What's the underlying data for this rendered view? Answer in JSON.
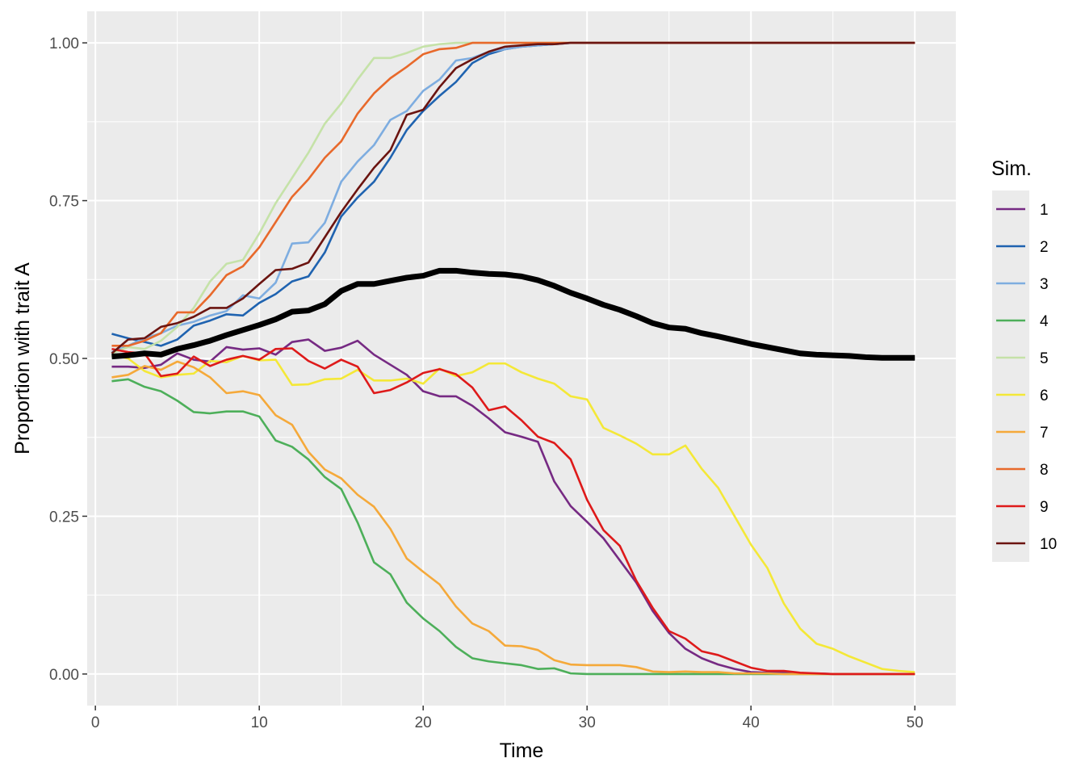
{
  "chart_data": {
    "type": "line",
    "title": "",
    "xlabel": "Time",
    "ylabel": "Proportion with trait A",
    "xlim": [
      -0.5,
      52.5
    ],
    "ylim": [
      -0.05,
      1.05
    ],
    "xticks": [
      0,
      10,
      20,
      30,
      40,
      50
    ],
    "yticks": [
      0,
      0.25,
      0.5,
      0.75,
      1
    ],
    "xtick_labels": [
      "0",
      "10",
      "20",
      "30",
      "40",
      "50"
    ],
    "ytick_labels": [
      "0.00",
      "0.25",
      "0.50",
      "0.75",
      "1.00"
    ],
    "grid": true,
    "panel_background": "#EBEBEB",
    "grid_color": "#FFFFFF",
    "legend": {
      "title": "Sim.",
      "position": "right"
    },
    "x": [
      1,
      2,
      3,
      4,
      5,
      6,
      7,
      8,
      9,
      10,
      11,
      12,
      13,
      14,
      15,
      16,
      17,
      18,
      19,
      20,
      21,
      22,
      23,
      24,
      25,
      26,
      27,
      28,
      29,
      30,
      31,
      32,
      33,
      34,
      35,
      36,
      37,
      38,
      39,
      40,
      41,
      42,
      43,
      44,
      45,
      46,
      47,
      48,
      49,
      50
    ],
    "series": [
      {
        "name": "1",
        "color": "#762A83",
        "values": [
          0.487,
          0.487,
          0.485,
          0.49,
          0.508,
          0.498,
          0.495,
          0.518,
          0.514,
          0.516,
          0.506,
          0.526,
          0.53,
          0.512,
          0.517,
          0.528,
          0.506,
          0.49,
          0.474,
          0.448,
          0.44,
          0.44,
          0.425,
          0.405,
          0.383,
          0.376,
          0.368,
          0.305,
          0.266,
          0.241,
          0.215,
          0.18,
          0.145,
          0.1,
          0.065,
          0.04,
          0.025,
          0.015,
          0.008,
          0.003,
          0.002,
          0.002,
          0.001,
          0.001,
          0.0,
          0.0,
          0.0,
          0.0,
          0.0,
          0.0
        ]
      },
      {
        "name": "2",
        "color": "#1F63B0",
        "values": [
          0.539,
          0.532,
          0.526,
          0.52,
          0.53,
          0.552,
          0.56,
          0.57,
          0.568,
          0.588,
          0.602,
          0.622,
          0.63,
          0.668,
          0.725,
          0.755,
          0.78,
          0.818,
          0.862,
          0.892,
          0.916,
          0.938,
          0.968,
          0.982,
          0.99,
          0.994,
          0.996,
          0.998,
          1.0,
          1.0,
          1.0,
          1.0,
          1.0,
          1.0,
          1.0,
          1.0,
          1.0,
          1.0,
          1.0,
          1.0,
          1.0,
          1.0,
          1.0,
          1.0,
          1.0,
          1.0,
          1.0,
          1.0,
          1.0,
          1.0
        ]
      },
      {
        "name": "3",
        "color": "#7EADE0",
        "values": [
          0.51,
          0.52,
          0.532,
          0.54,
          0.552,
          0.558,
          0.568,
          0.575,
          0.6,
          0.595,
          0.62,
          0.682,
          0.684,
          0.715,
          0.78,
          0.812,
          0.838,
          0.878,
          0.892,
          0.924,
          0.942,
          0.972,
          0.976,
          0.986,
          0.99,
          0.994,
          0.996,
          0.998,
          1.0,
          1.0,
          1.0,
          1.0,
          1.0,
          1.0,
          1.0,
          1.0,
          1.0,
          1.0,
          1.0,
          1.0,
          1.0,
          1.0,
          1.0,
          1.0,
          1.0,
          1.0,
          1.0,
          1.0,
          1.0,
          1.0
        ]
      },
      {
        "name": "4",
        "color": "#4DAF5A",
        "values": [
          0.464,
          0.467,
          0.455,
          0.448,
          0.433,
          0.415,
          0.413,
          0.416,
          0.416,
          0.408,
          0.37,
          0.36,
          0.34,
          0.312,
          0.293,
          0.24,
          0.177,
          0.158,
          0.113,
          0.088,
          0.068,
          0.043,
          0.025,
          0.02,
          0.017,
          0.014,
          0.008,
          0.009,
          0.001,
          0.0,
          0.0,
          0.0,
          0.0,
          0.0,
          0.0,
          0.0,
          0.0,
          0.0,
          0.0,
          0.0,
          0.0,
          0.0,
          0.0,
          0.0,
          0.0,
          0.0,
          0.0,
          0.0,
          0.0,
          0.0
        ]
      },
      {
        "name": "5",
        "color": "#C5E2A8",
        "values": [
          0.508,
          0.518,
          0.515,
          0.528,
          0.55,
          0.58,
          0.622,
          0.65,
          0.656,
          0.698,
          0.746,
          0.786,
          0.826,
          0.872,
          0.904,
          0.942,
          0.976,
          0.976,
          0.984,
          0.994,
          0.998,
          1.0,
          1.0,
          1.0,
          1.0,
          1.0,
          1.0,
          1.0,
          1.0,
          1.0,
          1.0,
          1.0,
          1.0,
          1.0,
          1.0,
          1.0,
          1.0,
          1.0,
          1.0,
          1.0,
          1.0,
          1.0,
          1.0,
          1.0,
          1.0,
          1.0,
          1.0,
          1.0,
          1.0,
          1.0
        ]
      },
      {
        "name": "6",
        "color": "#F4E837",
        "values": [
          0.505,
          0.5,
          0.48,
          0.47,
          0.474,
          0.476,
          0.496,
          0.494,
          0.504,
          0.497,
          0.498,
          0.458,
          0.459,
          0.467,
          0.468,
          0.482,
          0.465,
          0.465,
          0.468,
          0.46,
          0.484,
          0.472,
          0.478,
          0.492,
          0.492,
          0.478,
          0.468,
          0.46,
          0.44,
          0.435,
          0.39,
          0.378,
          0.365,
          0.348,
          0.348,
          0.362,
          0.325,
          0.295,
          0.25,
          0.205,
          0.168,
          0.112,
          0.072,
          0.048,
          0.04,
          0.028,
          0.018,
          0.008,
          0.005,
          0.003
        ]
      },
      {
        "name": "7",
        "color": "#F5A93A",
        "values": [
          0.47,
          0.474,
          0.488,
          0.482,
          0.495,
          0.486,
          0.47,
          0.445,
          0.448,
          0.442,
          0.41,
          0.395,
          0.352,
          0.324,
          0.31,
          0.284,
          0.265,
          0.23,
          0.183,
          0.162,
          0.142,
          0.107,
          0.08,
          0.068,
          0.045,
          0.044,
          0.038,
          0.022,
          0.015,
          0.014,
          0.014,
          0.014,
          0.011,
          0.004,
          0.003,
          0.004,
          0.003,
          0.003,
          0.001,
          0.001,
          0.001,
          0.0,
          0.0,
          0.0,
          0.0,
          0.0,
          0.0,
          0.0,
          0.0,
          0.0
        ]
      },
      {
        "name": "8",
        "color": "#E8692B",
        "values": [
          0.52,
          0.52,
          0.528,
          0.54,
          0.573,
          0.573,
          0.6,
          0.632,
          0.646,
          0.676,
          0.716,
          0.756,
          0.784,
          0.818,
          0.844,
          0.888,
          0.92,
          0.944,
          0.962,
          0.982,
          0.99,
          0.992,
          1.0,
          1.0,
          1.0,
          1.0,
          1.0,
          1.0,
          1.0,
          1.0,
          1.0,
          1.0,
          1.0,
          1.0,
          1.0,
          1.0,
          1.0,
          1.0,
          1.0,
          1.0,
          1.0,
          1.0,
          1.0,
          1.0,
          1.0,
          1.0,
          1.0,
          1.0,
          1.0,
          1.0
        ]
      },
      {
        "name": "9",
        "color": "#DE1A1A",
        "values": [
          0.515,
          0.51,
          0.508,
          0.472,
          0.476,
          0.503,
          0.488,
          0.498,
          0.504,
          0.498,
          0.515,
          0.516,
          0.496,
          0.484,
          0.498,
          0.487,
          0.445,
          0.45,
          0.462,
          0.477,
          0.483,
          0.475,
          0.454,
          0.418,
          0.424,
          0.402,
          0.376,
          0.366,
          0.34,
          0.276,
          0.228,
          0.203,
          0.148,
          0.105,
          0.068,
          0.056,
          0.036,
          0.03,
          0.02,
          0.01,
          0.005,
          0.005,
          0.002,
          0.001,
          0.0,
          0.0,
          0.0,
          0.0,
          0.0,
          0.0
        ]
      },
      {
        "name": "10",
        "color": "#6B1410",
        "values": [
          0.508,
          0.53,
          0.532,
          0.55,
          0.556,
          0.566,
          0.58,
          0.58,
          0.595,
          0.618,
          0.64,
          0.642,
          0.652,
          0.692,
          0.732,
          0.768,
          0.802,
          0.83,
          0.886,
          0.894,
          0.93,
          0.96,
          0.974,
          0.986,
          0.994,
          0.996,
          0.998,
          0.998,
          1.0,
          1.0,
          1.0,
          1.0,
          1.0,
          1.0,
          1.0,
          1.0,
          1.0,
          1.0,
          1.0,
          1.0,
          1.0,
          1.0,
          1.0,
          1.0,
          1.0,
          1.0,
          1.0,
          1.0,
          1.0,
          1.0
        ]
      }
    ],
    "mean_line": {
      "color": "#000000",
      "values": [
        0.503,
        0.505,
        0.508,
        0.506,
        0.515,
        0.521,
        0.528,
        0.537,
        0.545,
        0.553,
        0.562,
        0.574,
        0.576,
        0.586,
        0.607,
        0.618,
        0.618,
        0.623,
        0.628,
        0.631,
        0.639,
        0.639,
        0.636,
        0.634,
        0.633,
        0.63,
        0.624,
        0.615,
        0.604,
        0.595,
        0.585,
        0.577,
        0.567,
        0.556,
        0.549,
        0.547,
        0.54,
        0.535,
        0.529,
        0.523,
        0.518,
        0.513,
        0.508,
        0.506,
        0.505,
        0.504,
        0.502,
        0.501,
        0.501,
        0.501
      ]
    }
  }
}
